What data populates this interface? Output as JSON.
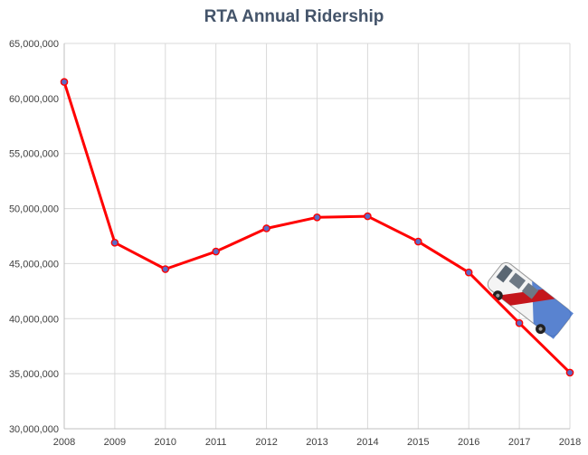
{
  "chart_data": {
    "type": "line",
    "title": "RTA Annual Ridership",
    "xlabel": "",
    "ylabel": "",
    "categories": [
      "2008",
      "2009",
      "2010",
      "2011",
      "2012",
      "2013",
      "2014",
      "2015",
      "2016",
      "2017",
      "2018"
    ],
    "series": [
      {
        "values": [
          61500000,
          46900000,
          44500000,
          46100000,
          48200000,
          49200000,
          49300000,
          47000000,
          44200000,
          39600000,
          35100000
        ]
      }
    ],
    "ylim": [
      30000000,
      65000000
    ],
    "y_ticks": [
      30000000,
      35000000,
      40000000,
      45000000,
      50000000,
      55000000,
      60000000,
      65000000
    ],
    "y_tick_labels": [
      "30,000,000",
      "35,000,000",
      "40,000,000",
      "45,000,000",
      "50,000,000",
      "55,000,000",
      "60,000,000",
      "65,000,000"
    ],
    "grid": true,
    "legend": "none",
    "colors": {
      "line": "#ff0000",
      "marker_fill": "#5b6bc5",
      "title": "#44546a",
      "grid": "#d9d9d9"
    },
    "annotation_icon": "bus-icon"
  }
}
